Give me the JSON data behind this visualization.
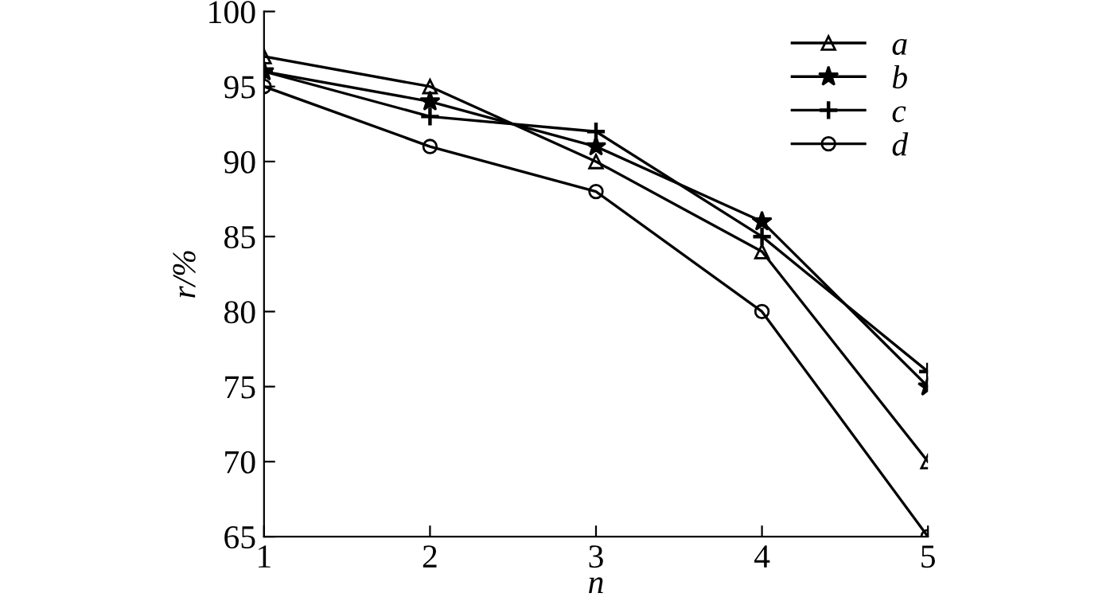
{
  "chart_data": {
    "type": "line",
    "xlabel": "n",
    "ylabel": "r/%",
    "x": [
      1,
      2,
      3,
      4,
      5
    ],
    "series": [
      {
        "name": "a",
        "color": "#000000",
        "marker": "triangle",
        "values": [
          97,
          95,
          90,
          84,
          70
        ]
      },
      {
        "name": "b",
        "color": "#000000",
        "marker": "star",
        "values": [
          96,
          94,
          91,
          86,
          75
        ]
      },
      {
        "name": "c",
        "color": "#000000",
        "marker": "cross",
        "values": [
          96,
          93,
          92,
          85,
          76
        ]
      },
      {
        "name": "d",
        "color": "#000000",
        "marker": "circle",
        "values": [
          95,
          91,
          88,
          80,
          65
        ]
      }
    ],
    "xlim": [
      1,
      5
    ],
    "xticks": [
      1,
      2,
      3,
      4,
      5
    ],
    "ylim": [
      65,
      100
    ],
    "yticks": [
      65,
      70,
      75,
      80,
      85,
      90,
      95,
      100
    ],
    "grid": false,
    "legend": "top right",
    "line_style": "solid"
  }
}
